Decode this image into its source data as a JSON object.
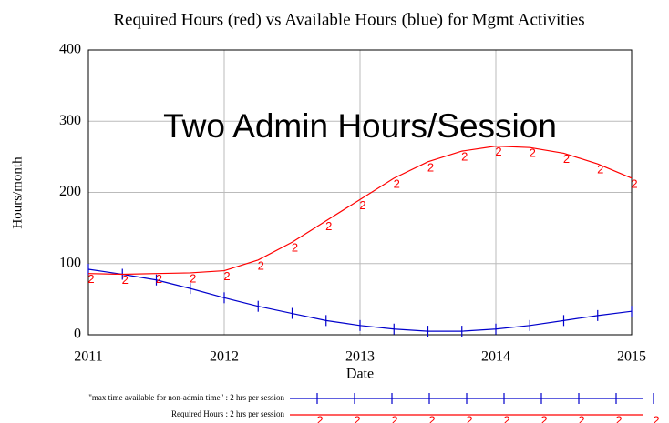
{
  "chart_data": {
    "type": "line",
    "title": "Required Hours (red) vs Available Hours (blue) for Mgmt Activities",
    "annotation": "Two Admin Hours/Session",
    "x_label": "Date",
    "y_label": "Hours/month",
    "x": [
      2011,
      2011.25,
      2011.5,
      2011.75,
      2012,
      2012.25,
      2012.5,
      2012.75,
      2013,
      2013.25,
      2013.5,
      2013.75,
      2014,
      2014.25,
      2014.5,
      2014.75,
      2015
    ],
    "series": [
      {
        "name": "\"max time available for non-admin time\" : 2 hrs per session",
        "color": "#0000cc",
        "values": [
          92,
          85,
          77,
          65,
          52,
          40,
          30,
          20,
          13,
          8,
          5,
          5,
          8,
          13,
          20,
          27,
          33
        ]
      },
      {
        "name": "Required Hours : 2 hrs per session",
        "color": "#ff0000",
        "marker": "2",
        "values": [
          86,
          85,
          86,
          87,
          90,
          105,
          130,
          160,
          190,
          220,
          243,
          258,
          265,
          263,
          255,
          240,
          220
        ]
      }
    ],
    "xlim": [
      2011,
      2015
    ],
    "xticks": [
      2011,
      2012,
      2013,
      2014,
      2015
    ],
    "ylim": [
      0,
      400
    ],
    "yticks": [
      0,
      100,
      200,
      300,
      400
    ],
    "grid": true
  }
}
